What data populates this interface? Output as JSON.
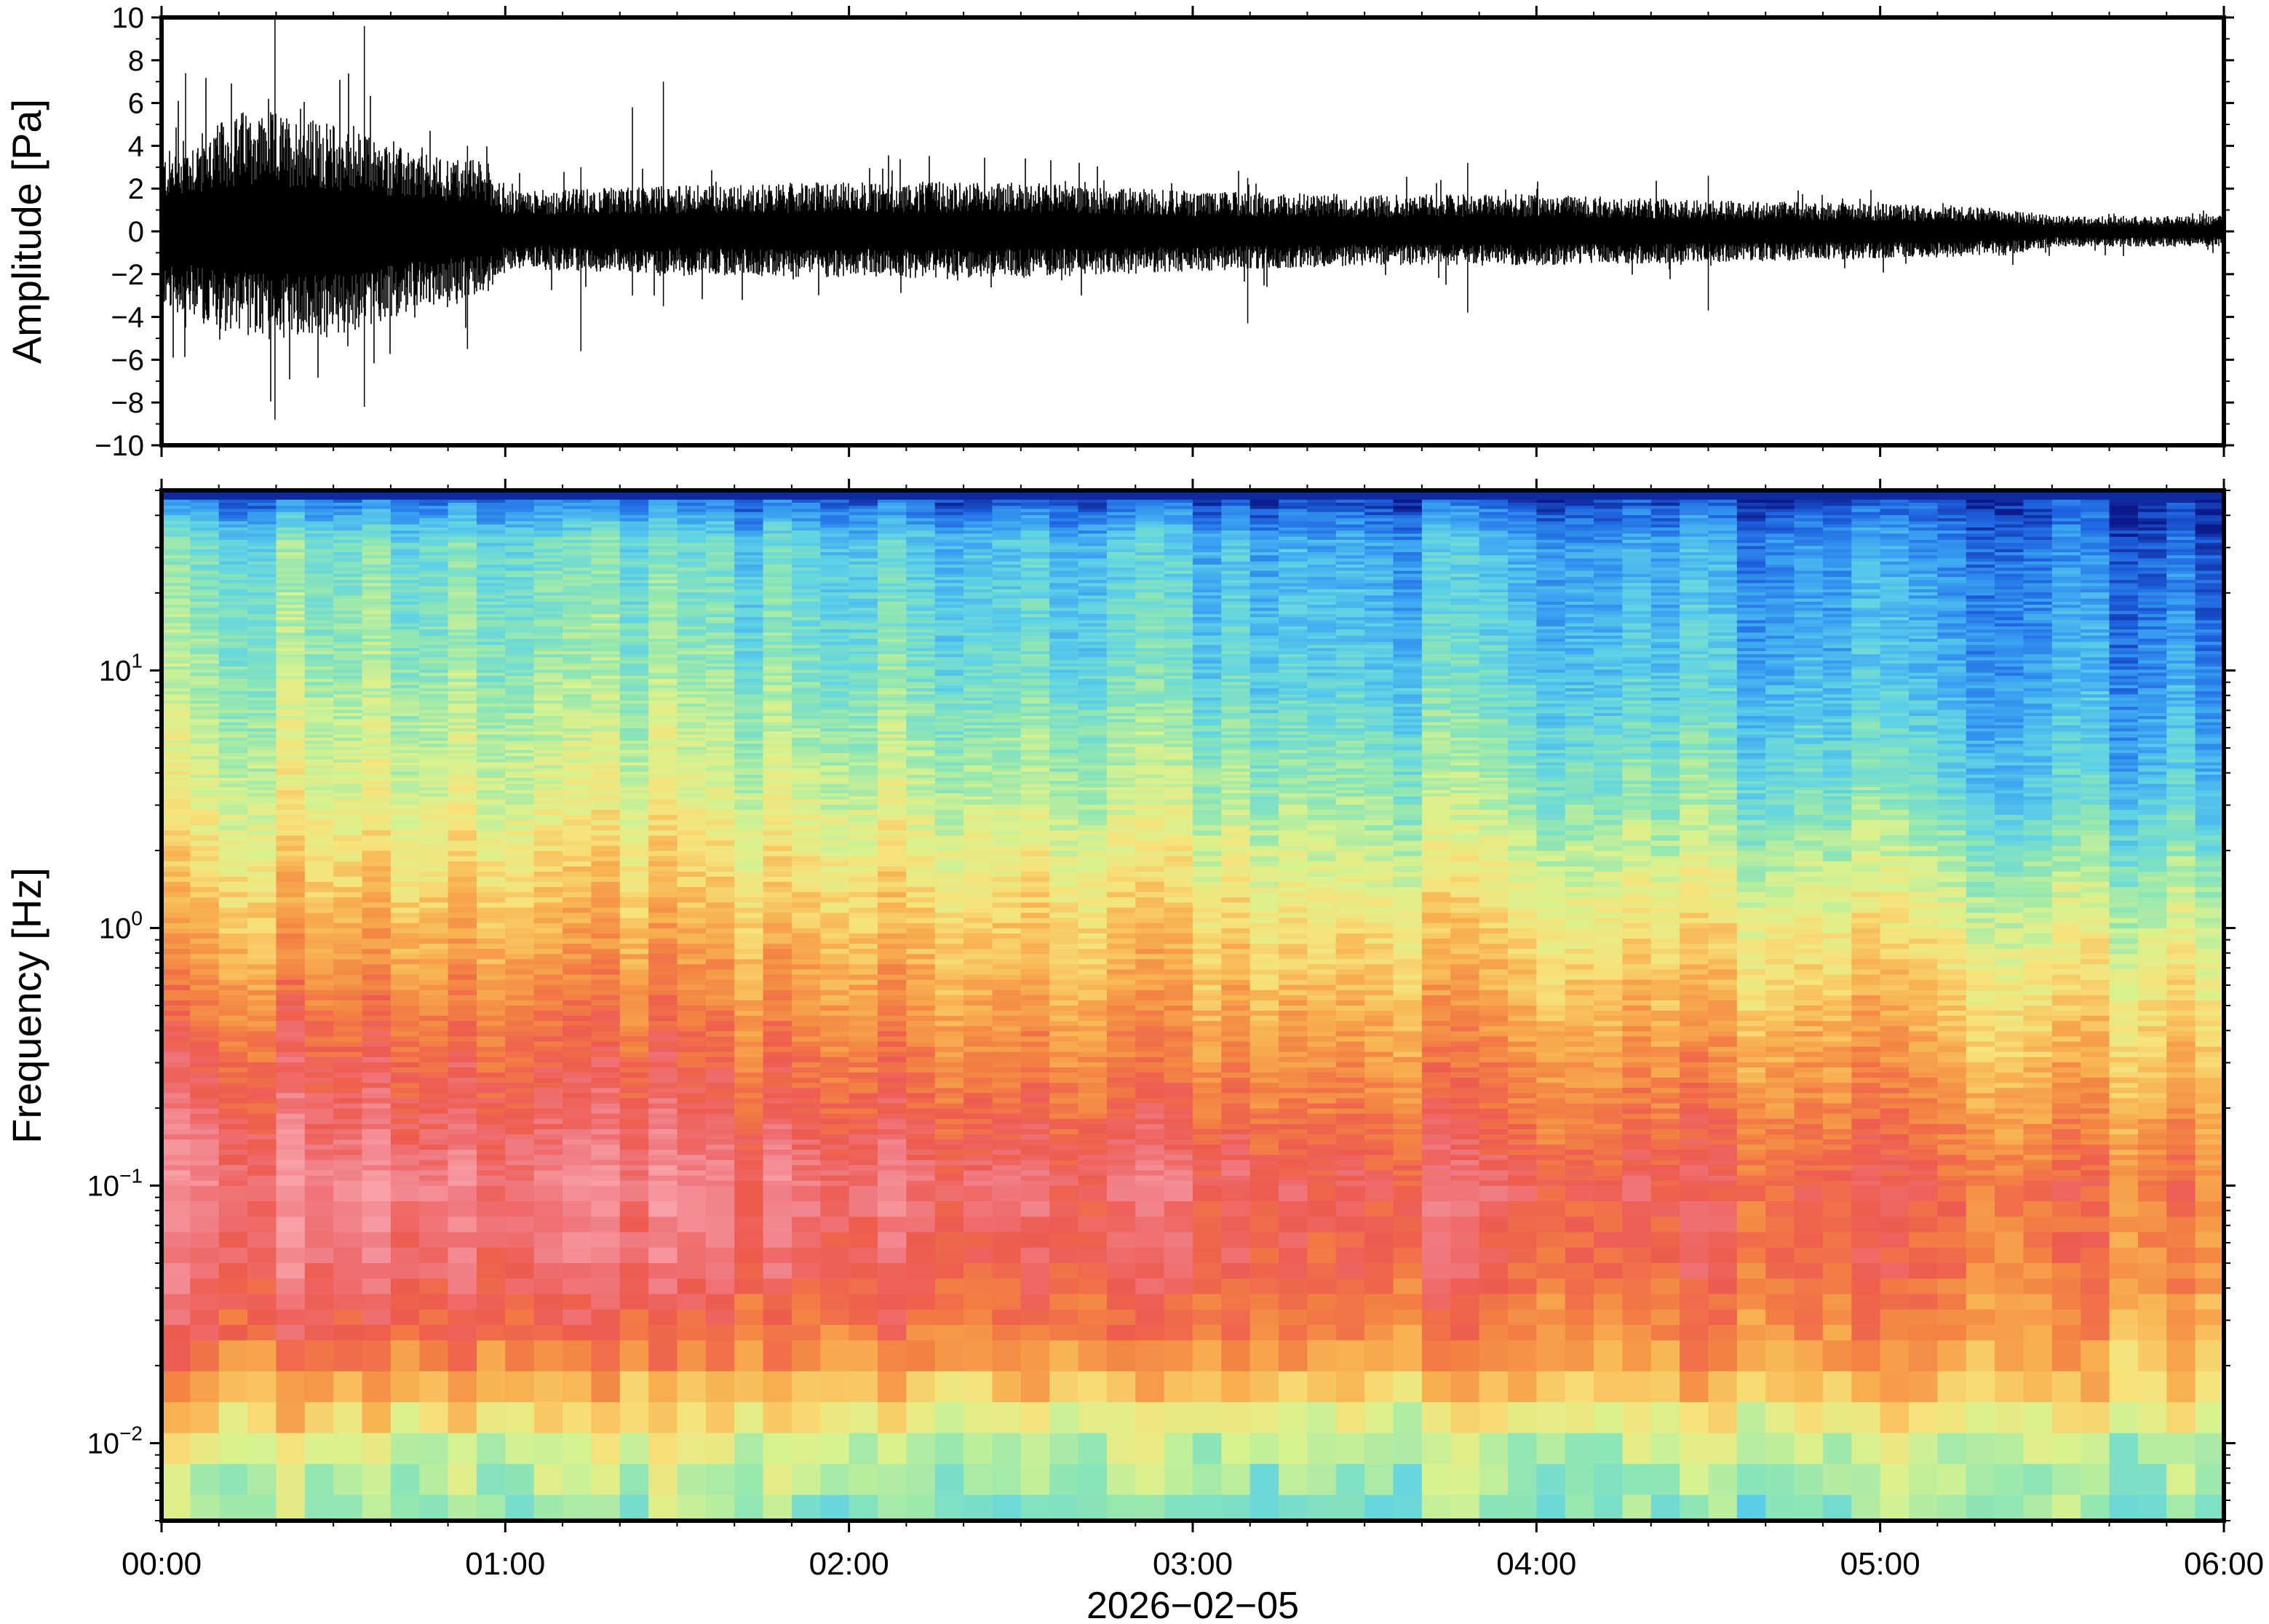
{
  "chart_data": [
    {
      "type": "line",
      "id": "waveform",
      "ylabel": "Amplitude [Pa]",
      "ylim": [
        -10,
        10
      ],
      "yticks": [
        -10,
        -8,
        -6,
        -4,
        -2,
        0,
        2,
        4,
        6,
        8,
        10
      ],
      "ytick_labels": [
        "−10",
        "−8",
        "−6",
        "−4",
        "−2",
        "0",
        "2",
        "4",
        "6",
        "8",
        "10"
      ],
      "xlim_hours": [
        0,
        6
      ],
      "series": [
        {
          "color": "#000000",
          "envelope_hours": [
            0,
            0.25,
            0.5,
            0.75,
            0.95,
            1.0,
            1.5,
            2.0,
            2.5,
            3.0,
            3.5,
            4.0,
            4.5,
            5.0,
            5.35,
            5.5,
            6.0
          ],
          "envelope_upper_pa": [
            2.5,
            4.0,
            3.5,
            2.5,
            2.3,
            1.3,
            1.5,
            1.6,
            1.6,
            1.3,
            1.2,
            1.2,
            1.0,
            0.9,
            0.8,
            0.5,
            0.5
          ],
          "envelope_lower_pa": [
            -2.5,
            -3.5,
            -3.5,
            -2.5,
            -2.0,
            -1.2,
            -1.4,
            -1.5,
            -1.5,
            -1.3,
            -1.1,
            -1.1,
            -1.0,
            -0.9,
            -0.8,
            -0.5,
            -0.5
          ],
          "spikes": [
            {
              "t": 0.33,
              "max": 10,
              "min": -8.8
            },
            {
              "t": 0.59,
              "max": 9.6,
              "min": -8.2
            },
            {
              "t": 0.07,
              "max": 7.4,
              "min": -4.5
            },
            {
              "t": 1.46,
              "max": 7.0,
              "min": -3.5
            },
            {
              "t": 1.37,
              "max": 5.8,
              "min": -3.0
            },
            {
              "t": 1.22,
              "max": 3.0,
              "min": -5.6
            },
            {
              "t": 0.89,
              "max": 4.0,
              "min": -5.5
            },
            {
              "t": 3.16,
              "max": 2.5,
              "min": -4.3
            },
            {
              "t": 3.8,
              "max": 3.2,
              "min": -3.8
            },
            {
              "t": 4.5,
              "max": 2.6,
              "min": -3.7
            }
          ]
        }
      ]
    },
    {
      "type": "heatmap",
      "id": "spectrogram",
      "ylabel": "Frequency [Hz]",
      "yscale": "log",
      "ylim_hz": [
        0.005,
        50
      ],
      "ytick_labels": [
        {
          "value": 0.01,
          "base": "10",
          "exp": "−2"
        },
        {
          "value": 0.1,
          "base": "10",
          "exp": "−1"
        },
        {
          "value": 1,
          "base": "10",
          "exp": "0"
        },
        {
          "value": 10,
          "base": "10",
          "exp": "1"
        }
      ],
      "xlim_hours": [
        0,
        6
      ],
      "xlabel": "2026−02−05",
      "xtick_labels": [
        "00:00",
        "01:00",
        "02:00",
        "03:00",
        "04:00",
        "05:00",
        "06:00"
      ],
      "colormap": [
        "#0b1a8a",
        "#1e62e0",
        "#3aa3f2",
        "#5fd3e6",
        "#8ee6b4",
        "#d7f28f",
        "#f7e27a",
        "#f8b150",
        "#f38443",
        "#ee5b4f",
        "#f07a82",
        "#f8a0a6"
      ],
      "value_grid": {
        "hours": [
          0,
          1,
          2,
          3,
          4,
          5,
          5.4,
          6
        ],
        "log10_hz": [
          1.7,
          1.5,
          1.0,
          0.5,
          0.0,
          -0.5,
          -1.0,
          -1.3,
          -1.6,
          -1.8,
          -2.0,
          -2.3
        ],
        "levels": [
          [
            0.08,
            0.08,
            0.07,
            0.05,
            0.04,
            0.03,
            0.03,
            0.02
          ],
          [
            0.33,
            0.32,
            0.28,
            0.24,
            0.2,
            0.16,
            0.12,
            0.1
          ],
          [
            0.4,
            0.38,
            0.35,
            0.3,
            0.27,
            0.22,
            0.18,
            0.18
          ],
          [
            0.5,
            0.48,
            0.47,
            0.43,
            0.38,
            0.33,
            0.26,
            0.28
          ],
          [
            0.65,
            0.64,
            0.62,
            0.58,
            0.55,
            0.52,
            0.46,
            0.48
          ],
          [
            0.82,
            0.8,
            0.76,
            0.72,
            0.7,
            0.67,
            0.6,
            0.63
          ],
          [
            0.95,
            0.93,
            0.92,
            0.88,
            0.84,
            0.8,
            0.76,
            0.76
          ],
          [
            0.9,
            0.88,
            0.86,
            0.82,
            0.8,
            0.78,
            0.72,
            0.73
          ],
          [
            0.82,
            0.78,
            0.75,
            0.74,
            0.72,
            0.7,
            0.66,
            0.66
          ],
          [
            0.66,
            0.62,
            0.6,
            0.6,
            0.6,
            0.6,
            0.58,
            0.58
          ],
          [
            0.5,
            0.48,
            0.46,
            0.44,
            0.42,
            0.44,
            0.43,
            0.44
          ],
          [
            0.38,
            0.36,
            0.36,
            0.34,
            0.34,
            0.35,
            0.36,
            0.36
          ]
        ]
      }
    }
  ]
}
